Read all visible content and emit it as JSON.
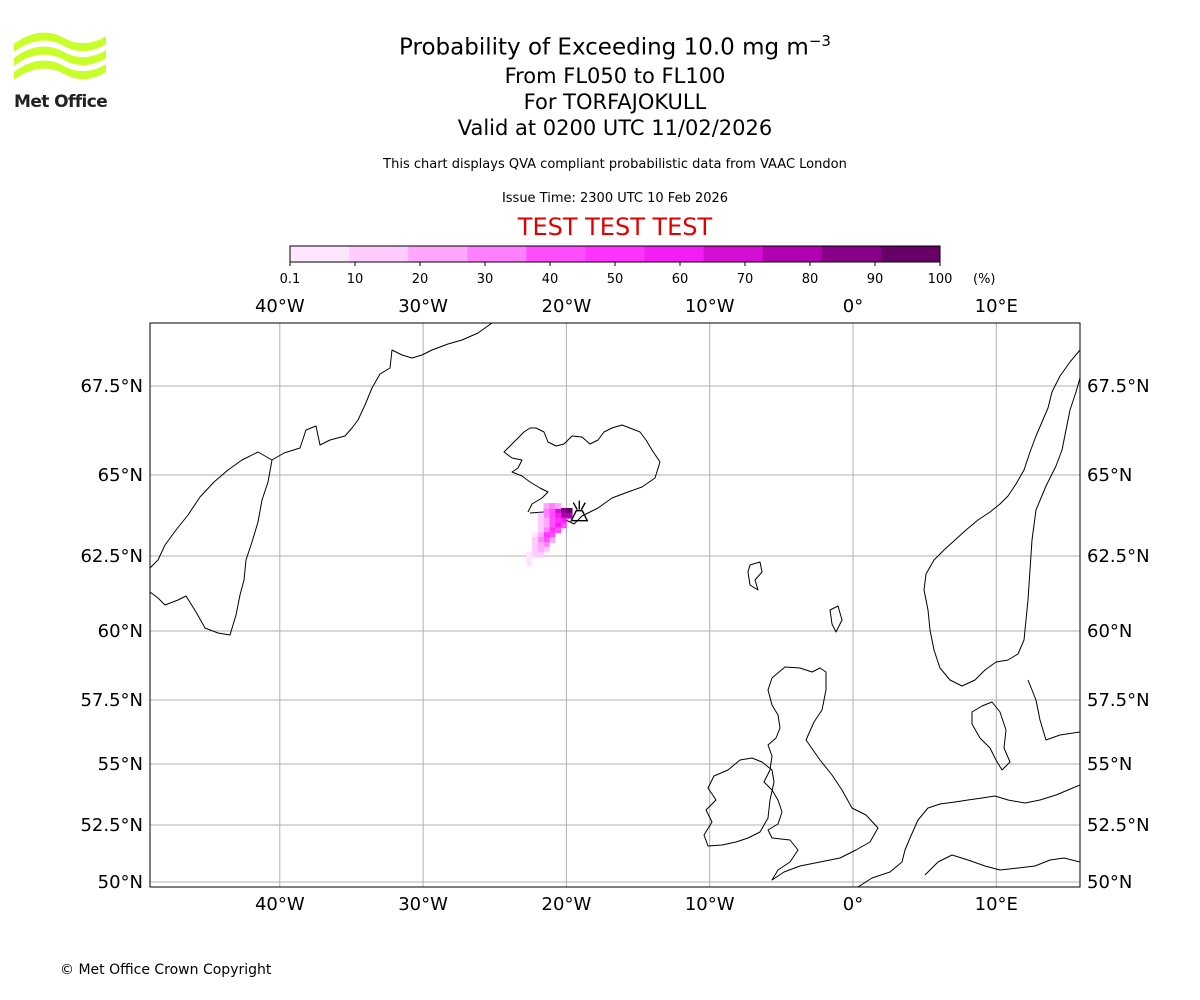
{
  "logo": {
    "name": "Met Office",
    "stripe_color": "#c8ff2a"
  },
  "title": {
    "main_prefix": "Probability of Exceeding 10.0 mg m",
    "main_exponent": "−3",
    "levels": "From FL050 to FL100",
    "volcano": "For TORFAJOKULL",
    "valid": "Valid at 0200 UTC 11/02/2026"
  },
  "description": "This chart displays QVA compliant probabilistic data from VAAC London",
  "issue_time": "Issue Time: 2300 UTC 10 Feb 2026",
  "test_banner": {
    "text": "TEST TEST TEST",
    "color": "#e00000"
  },
  "colorbar": {
    "unit": "(%)",
    "ticks": [
      "0.1",
      "10",
      "20",
      "30",
      "40",
      "50",
      "60",
      "70",
      "80",
      "90",
      "100"
    ],
    "colors": [
      "#ffe6ff",
      "#ffccff",
      "#ffa6ff",
      "#ff80ff",
      "#ff4dff",
      "#ff33ff",
      "#f31ef3",
      "#d40fd4",
      "#b000b0",
      "#880088",
      "#660066"
    ]
  },
  "map": {
    "lon_ticks": [
      "40°W",
      "30°W",
      "20°W",
      "10°W",
      "0°",
      "10°E"
    ],
    "lat_ticks": [
      "67.5°N",
      "65°N",
      "62.5°N",
      "60°N",
      "57.5°N",
      "55°N",
      "52.5°N",
      "50°N"
    ],
    "lon_values": [
      -40,
      -30,
      -20,
      -10,
      0,
      10
    ],
    "lat_values": [
      67.5,
      65,
      62.5,
      60,
      57.5,
      55,
      52.5,
      50
    ],
    "extent": {
      "lon_min": -49,
      "lon_max": 16,
      "lat_min": 49.8,
      "lat_max": 69.4
    },
    "volcano": {
      "name": "TORFAJOKULL",
      "lon": -19.1,
      "lat": 63.9
    },
    "plume_cells": [
      {
        "lon": -19.8,
        "lat": 63.9,
        "p": 100
      },
      {
        "lon": -20.2,
        "lat": 63.9,
        "p": 95
      },
      {
        "lon": -20.6,
        "lat": 63.9,
        "p": 70
      },
      {
        "lon": -21.0,
        "lat": 63.9,
        "p": 45
      },
      {
        "lon": -21.4,
        "lat": 63.9,
        "p": 35
      },
      {
        "lon": -21.4,
        "lat": 64.05,
        "p": 25
      },
      {
        "lon": -21.0,
        "lat": 64.05,
        "p": 30
      },
      {
        "lon": -20.6,
        "lat": 64.05,
        "p": 20
      },
      {
        "lon": -19.8,
        "lat": 63.75,
        "p": 85
      },
      {
        "lon": -20.2,
        "lat": 63.75,
        "p": 80
      },
      {
        "lon": -20.6,
        "lat": 63.75,
        "p": 60
      },
      {
        "lon": -21.0,
        "lat": 63.75,
        "p": 40
      },
      {
        "lon": -21.4,
        "lat": 63.75,
        "p": 30
      },
      {
        "lon": -21.8,
        "lat": 63.75,
        "p": 15
      },
      {
        "lon": -20.2,
        "lat": 63.6,
        "p": 60
      },
      {
        "lon": -20.6,
        "lat": 63.6,
        "p": 55
      },
      {
        "lon": -21.0,
        "lat": 63.6,
        "p": 45
      },
      {
        "lon": -21.4,
        "lat": 63.6,
        "p": 25
      },
      {
        "lon": -21.8,
        "lat": 63.6,
        "p": 12
      },
      {
        "lon": -20.2,
        "lat": 63.45,
        "p": 45
      },
      {
        "lon": -20.6,
        "lat": 63.45,
        "p": 60
      },
      {
        "lon": -21.0,
        "lat": 63.45,
        "p": 40
      },
      {
        "lon": -21.4,
        "lat": 63.45,
        "p": 25
      },
      {
        "lon": -21.8,
        "lat": 63.45,
        "p": 12
      },
      {
        "lon": -20.6,
        "lat": 63.3,
        "p": 40
      },
      {
        "lon": -21.0,
        "lat": 63.3,
        "p": 55
      },
      {
        "lon": -21.4,
        "lat": 63.3,
        "p": 30
      },
      {
        "lon": -21.8,
        "lat": 63.3,
        "p": 15
      },
      {
        "lon": -21.0,
        "lat": 63.15,
        "p": 45
      },
      {
        "lon": -21.4,
        "lat": 63.15,
        "p": 55
      },
      {
        "lon": -21.8,
        "lat": 63.15,
        "p": 20
      },
      {
        "lon": -22.2,
        "lat": 63.15,
        "p": 8
      },
      {
        "lon": -21.0,
        "lat": 63.0,
        "p": 25
      },
      {
        "lon": -21.4,
        "lat": 63.0,
        "p": 45
      },
      {
        "lon": -21.8,
        "lat": 63.0,
        "p": 35
      },
      {
        "lon": -22.2,
        "lat": 63.0,
        "p": 12
      },
      {
        "lon": -21.4,
        "lat": 62.85,
        "p": 30
      },
      {
        "lon": -21.8,
        "lat": 62.85,
        "p": 20
      },
      {
        "lon": -22.2,
        "lat": 62.85,
        "p": 12
      },
      {
        "lon": -21.4,
        "lat": 62.7,
        "p": 15
      },
      {
        "lon": -21.8,
        "lat": 62.7,
        "p": 20
      },
      {
        "lon": -22.2,
        "lat": 62.7,
        "p": 15
      },
      {
        "lon": -21.8,
        "lat": 62.55,
        "p": 12
      },
      {
        "lon": -22.2,
        "lat": 62.55,
        "p": 10
      },
      {
        "lon": -22.6,
        "lat": 62.55,
        "p": 5
      },
      {
        "lon": -22.6,
        "lat": 62.4,
        "p": 4
      },
      {
        "lon": -22.6,
        "lat": 62.25,
        "p": 3
      }
    ]
  },
  "copyright": "© Met Office Crown Copyright"
}
